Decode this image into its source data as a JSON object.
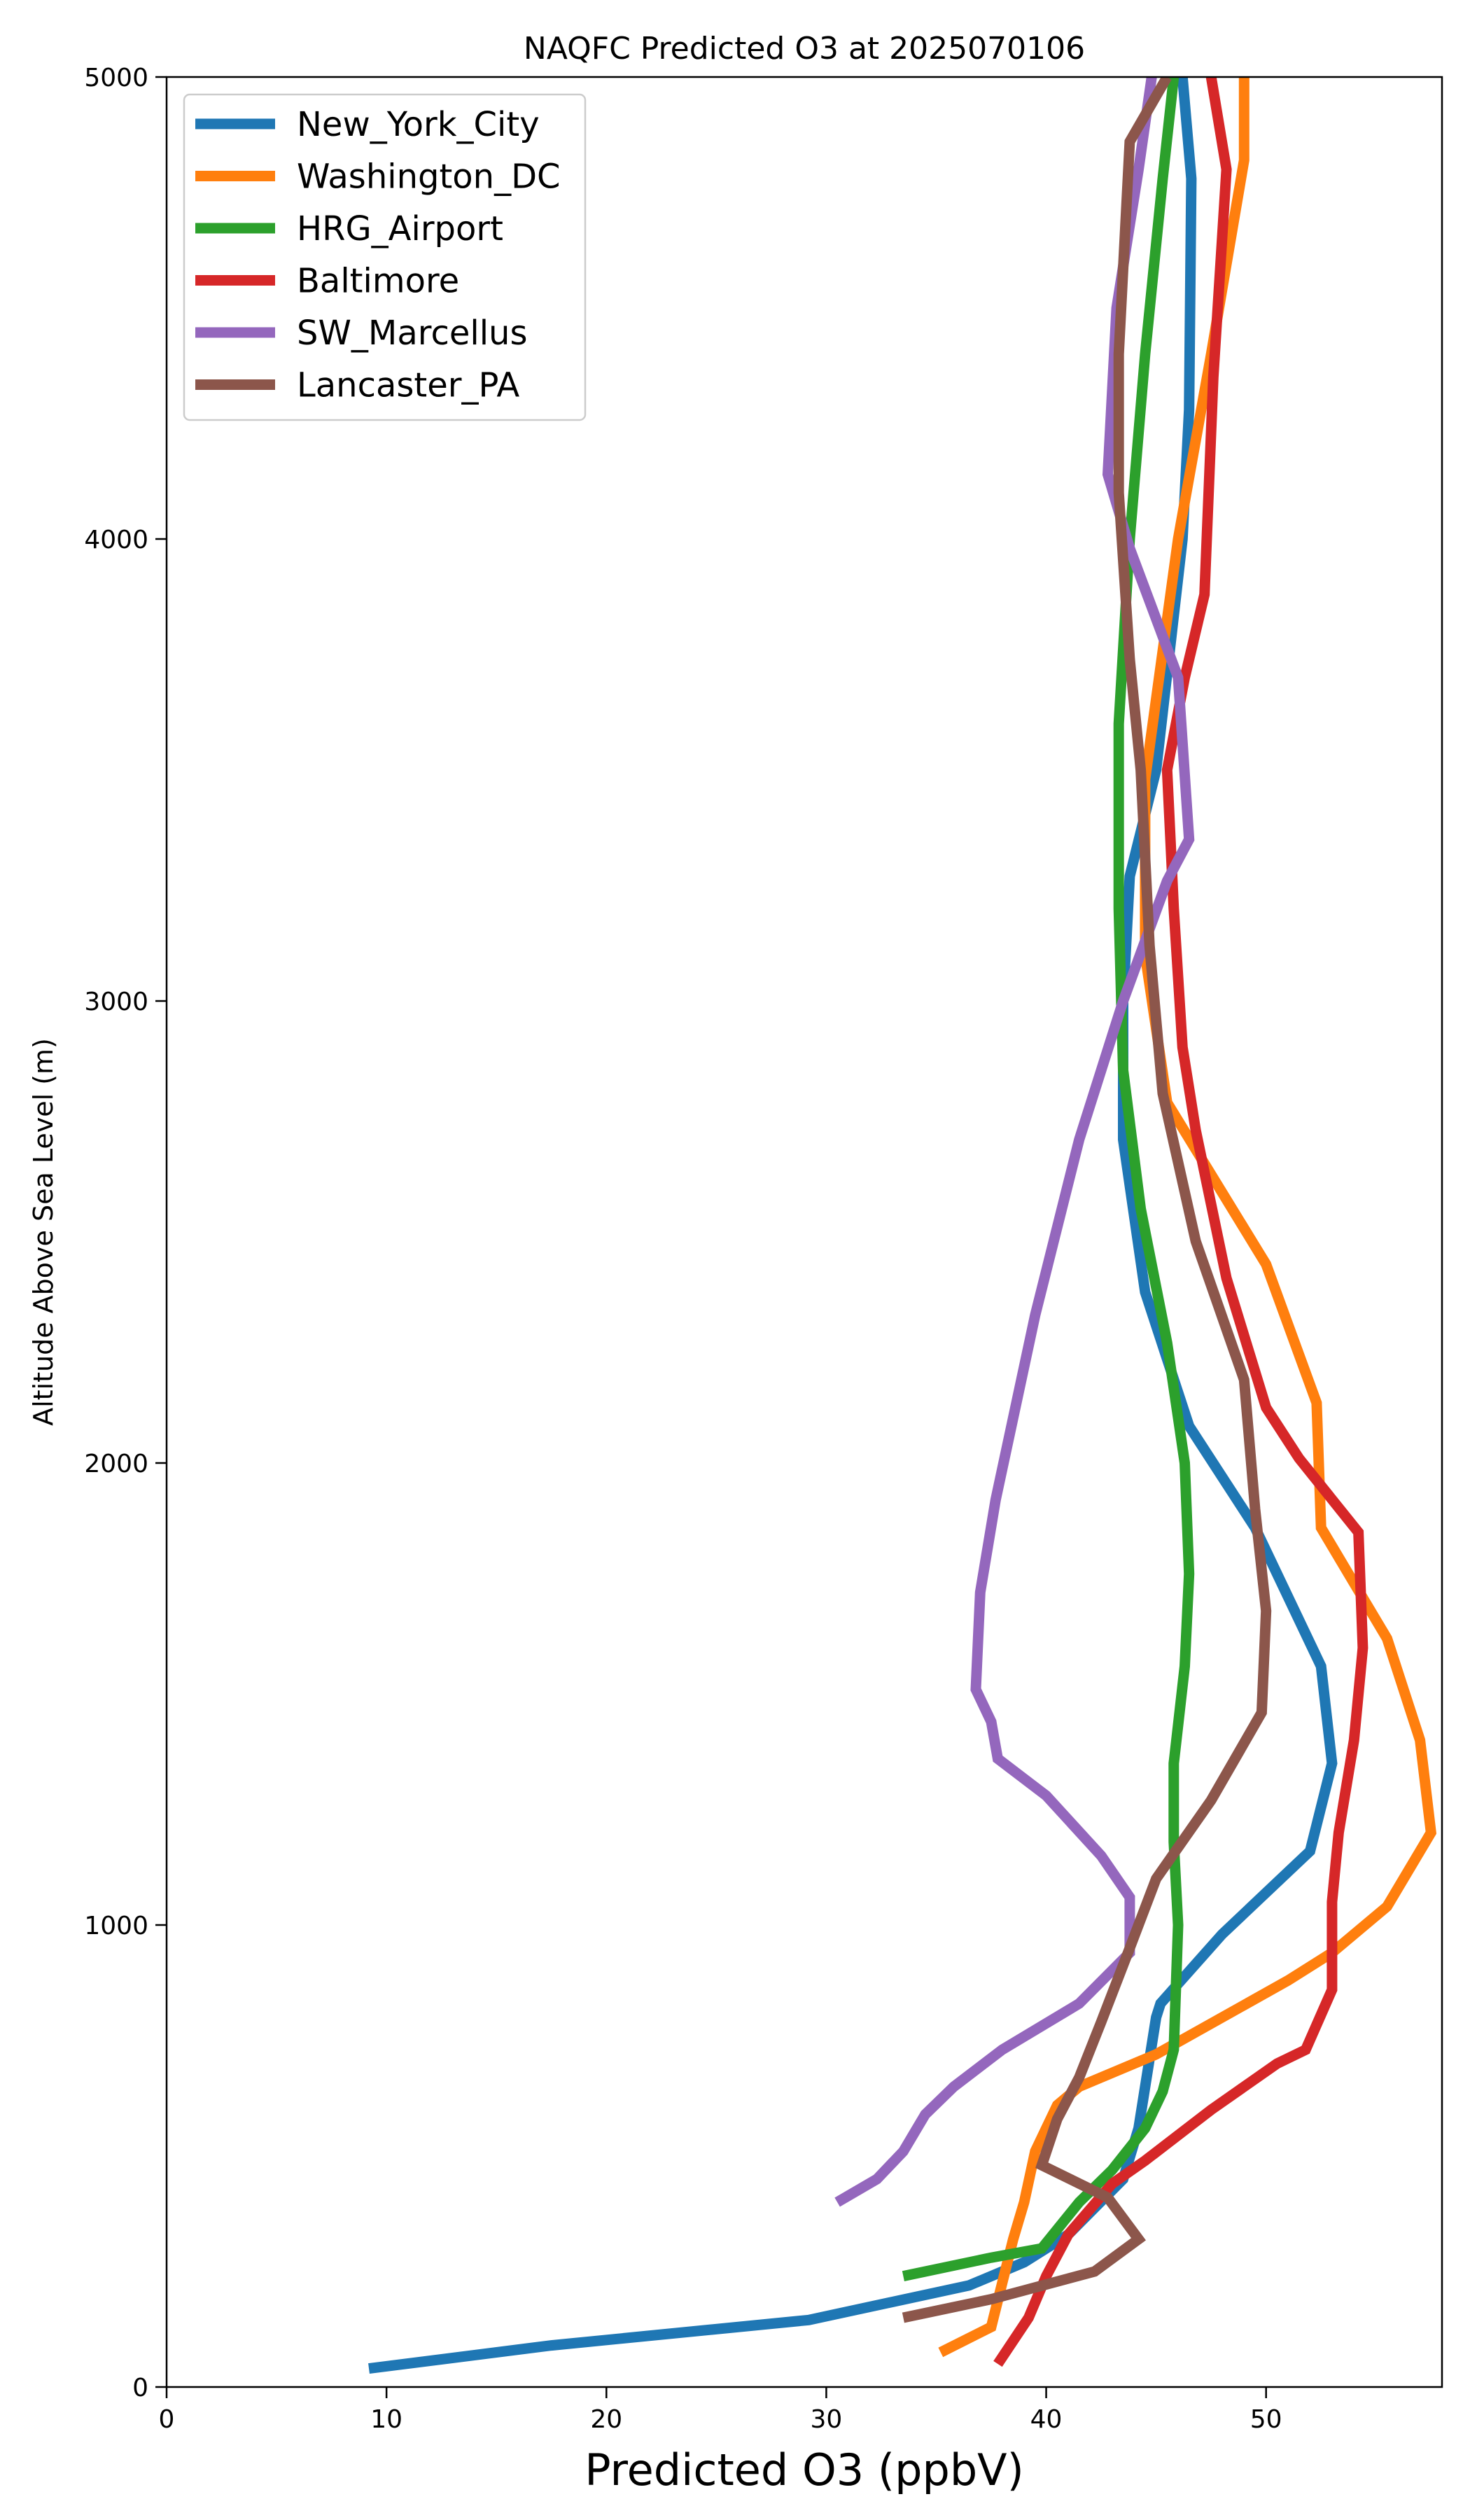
{
  "chart_data": {
    "type": "line",
    "title": "NAQFC Predicted O3 at 2025070106",
    "xlabel": "Predicted O3 (ppbV)",
    "ylabel": "Altitude Above Sea Level (m)",
    "xlim": [
      0,
      58
    ],
    "ylim": [
      0,
      5000
    ],
    "xticks": [
      "0",
      "10",
      "20",
      "30",
      "40",
      "50"
    ],
    "yticks": [
      "0",
      "1000",
      "2000",
      "3000",
      "4000",
      "5000"
    ],
    "grid": false,
    "legend": "top-left",
    "series": [
      {
        "name": "New_York_City",
        "color": "#1f77b4",
        "points": [
          [
            9.2,
            40
          ],
          [
            17.5,
            90
          ],
          [
            29.2,
            145
          ],
          [
            36.5,
            220
          ],
          [
            39,
            270
          ],
          [
            41,
            330
          ],
          [
            43.5,
            450
          ],
          [
            44.2,
            560
          ],
          [
            45,
            800
          ],
          [
            45.2,
            830
          ],
          [
            48,
            980
          ],
          [
            52,
            1160
          ],
          [
            53,
            1350
          ],
          [
            52.5,
            1560
          ],
          [
            49.5,
            1860
          ],
          [
            46.5,
            2080
          ],
          [
            44.5,
            2370
          ],
          [
            43.5,
            2700
          ],
          [
            43.5,
            3000
          ],
          [
            43.8,
            3270
          ],
          [
            45,
            3500
          ],
          [
            46.2,
            4000
          ],
          [
            46.5,
            4280
          ],
          [
            46.6,
            4780
          ],
          [
            46.2,
            5000
          ]
        ]
      },
      {
        "name": "Washington_DC",
        "color": "#ff7f0e",
        "points": [
          [
            35.2,
            75
          ],
          [
            37.5,
            130
          ],
          [
            38.5,
            320
          ],
          [
            39,
            400
          ],
          [
            39.5,
            510
          ],
          [
            40.5,
            610
          ],
          [
            41.5,
            650
          ],
          [
            45,
            720
          ],
          [
            51,
            880
          ],
          [
            53,
            940
          ],
          [
            55.5,
            1040
          ],
          [
            57.5,
            1200
          ],
          [
            57,
            1400
          ],
          [
            55.5,
            1620
          ],
          [
            53.5,
            1780
          ],
          [
            52.5,
            1860
          ],
          [
            52.3,
            2130
          ],
          [
            50,
            2430
          ],
          [
            45.5,
            2780
          ],
          [
            44.5,
            3100
          ],
          [
            44.5,
            3480
          ],
          [
            46,
            4000
          ],
          [
            47.5,
            4400
          ],
          [
            49,
            4820
          ],
          [
            49,
            5000
          ]
        ]
      },
      {
        "name": "HRG_Airport",
        "color": "#2ca02c",
        "points": [
          [
            33.5,
            240
          ],
          [
            37.5,
            280
          ],
          [
            39.8,
            300
          ],
          [
            41.5,
            400
          ],
          [
            43,
            470
          ],
          [
            44.5,
            560
          ],
          [
            45.3,
            640
          ],
          [
            45.8,
            730
          ],
          [
            46,
            1000
          ],
          [
            45.8,
            1180
          ],
          [
            45.8,
            1350
          ],
          [
            46.3,
            1560
          ],
          [
            46.5,
            1760
          ],
          [
            46.3,
            2000
          ],
          [
            45.5,
            2260
          ],
          [
            44.3,
            2550
          ],
          [
            43.5,
            2850
          ],
          [
            43.3,
            3200
          ],
          [
            43.3,
            3600
          ],
          [
            43.8,
            4000
          ],
          [
            44.5,
            4400
          ],
          [
            45.3,
            4780
          ],
          [
            45.8,
            5000
          ]
        ]
      },
      {
        "name": "Baltimore",
        "color": "#d62728",
        "points": [
          [
            37.8,
            50
          ],
          [
            38.5,
            100
          ],
          [
            39.2,
            150
          ],
          [
            40,
            240
          ],
          [
            41,
            330
          ],
          [
            43,
            440
          ],
          [
            44.5,
            490
          ],
          [
            47.5,
            600
          ],
          [
            50.5,
            700
          ],
          [
            51.8,
            730
          ],
          [
            53,
            860
          ],
          [
            53,
            1050
          ],
          [
            53.3,
            1200
          ],
          [
            54,
            1400
          ],
          [
            54.4,
            1600
          ],
          [
            54.2,
            1850
          ],
          [
            51.5,
            2010
          ],
          [
            50,
            2120
          ],
          [
            48.2,
            2400
          ],
          [
            46.8,
            2720
          ],
          [
            46.2,
            2900
          ],
          [
            45.8,
            3200
          ],
          [
            45.5,
            3500
          ],
          [
            46.3,
            3700
          ],
          [
            47.2,
            3880
          ],
          [
            47.6,
            4350
          ],
          [
            48.2,
            4800
          ],
          [
            47.5,
            5000
          ]
        ]
      },
      {
        "name": "SW_Marcellus",
        "color": "#9467bd",
        "points": [
          [
            30.5,
            400
          ],
          [
            32.3,
            450
          ],
          [
            33.5,
            510
          ],
          [
            34.5,
            590
          ],
          [
            35.8,
            650
          ],
          [
            38,
            730
          ],
          [
            41.5,
            830
          ],
          [
            43.8,
            940
          ],
          [
            43.8,
            1060
          ],
          [
            42.5,
            1150
          ],
          [
            40,
            1280
          ],
          [
            37.8,
            1360
          ],
          [
            37.5,
            1440
          ],
          [
            36.8,
            1510
          ],
          [
            37,
            1720
          ],
          [
            37.7,
            1920
          ],
          [
            39.5,
            2320
          ],
          [
            41.5,
            2700
          ],
          [
            43.5,
            3000
          ],
          [
            45.5,
            3260
          ],
          [
            46.5,
            3350
          ],
          [
            46,
            3700
          ],
          [
            43.8,
            3980
          ],
          [
            42.8,
            4140
          ],
          [
            43.2,
            4500
          ],
          [
            44.2,
            4800
          ],
          [
            44.8,
            5000
          ]
        ]
      },
      {
        "name": "Lancaster_PA",
        "color": "#8c564b",
        "points": [
          [
            33.5,
            150
          ],
          [
            37.5,
            190
          ],
          [
            42.2,
            250
          ],
          [
            44.2,
            320
          ],
          [
            42.8,
            410
          ],
          [
            39.8,
            480
          ],
          [
            40.5,
            580
          ],
          [
            41.5,
            670
          ],
          [
            42.5,
            790
          ],
          [
            43.8,
            950
          ],
          [
            45,
            1100
          ],
          [
            47.5,
            1270
          ],
          [
            49.8,
            1460
          ],
          [
            50,
            1680
          ],
          [
            49.5,
            1900
          ],
          [
            49,
            2180
          ],
          [
            46.8,
            2480
          ],
          [
            45.3,
            2800
          ],
          [
            44.7,
            3120
          ],
          [
            44.3,
            3500
          ],
          [
            43.8,
            3740
          ],
          [
            43.3,
            4100
          ],
          [
            43.3,
            4400
          ],
          [
            43.8,
            4860
          ],
          [
            45.5,
            5000
          ]
        ]
      }
    ]
  }
}
